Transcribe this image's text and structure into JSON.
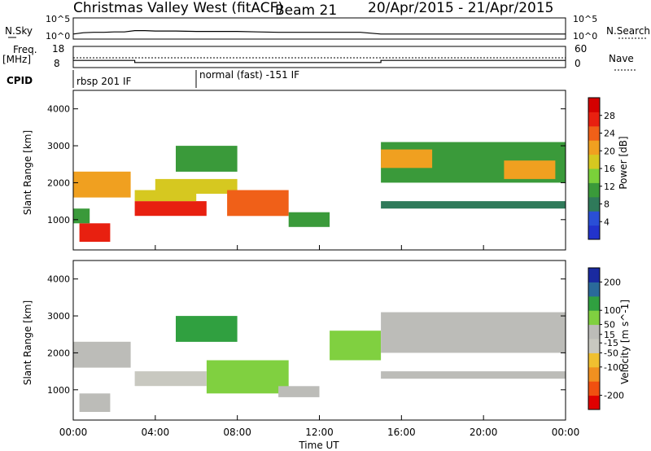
{
  "header": {
    "title": "Christmas Valley West (fitACF)",
    "beam": "Beam 21",
    "date_range": "20/Apr/2015 - 21/Apr/2015"
  },
  "labels": {
    "nsky": "N.Sky",
    "nsearch": "N.Search",
    "freq_line1": "Freq.",
    "freq_line2": "[MHz]",
    "nave": "Nave",
    "cpid": "CPID",
    "noise_tick_top": "10^5",
    "noise_tick_bottom": "10^0",
    "noise_tick_top_right": "10^5",
    "noise_tick_bottom_right": "10^0",
    "freq_tick_top": "18",
    "freq_tick_bottom": "8",
    "nave_tick_top": "60",
    "nave_tick_bottom": "0"
  },
  "cpid": [
    {
      "label": "rbsp 201 IF",
      "start_hour": 0
    },
    {
      "label": "normal (fast) -151 IF",
      "start_hour": 6
    }
  ],
  "colors": {
    "power": [
      "#2233cc",
      "#2a4fd6",
      "#2f7a5a",
      "#3a9a3a",
      "#7ad03a",
      "#d6c820",
      "#f0a020",
      "#f06018",
      "#e82010",
      "#d40000"
    ],
    "velocity": [
      "#e00000",
      "#f05010",
      "#f09020",
      "#f0c030",
      "#c8c8c0",
      "#bcbcb8",
      "#80d040",
      "#30a040",
      "#2a6a9a",
      "#1a2aa0"
    ],
    "ground_scatter": "#bfbfbf"
  },
  "chart_data": [
    {
      "type": "line",
      "name": "noise",
      "x": [
        0,
        0.5,
        1,
        1.5,
        2,
        2.5,
        3,
        3.5,
        4,
        5,
        6,
        7,
        8,
        9,
        10,
        11,
        12,
        13,
        14,
        15,
        16,
        17,
        18,
        19,
        20,
        21,
        22,
        23,
        24
      ],
      "series": [
        {
          "name": "N.Sky",
          "values": [
            1.2,
            1.5,
            1.6,
            1.6,
            1.7,
            1.7,
            2.0,
            2.0,
            1.9,
            1.9,
            1.8,
            1.8,
            1.8,
            1.7,
            1.6,
            1.6,
            1.6,
            1.6,
            1.6,
            1.2,
            1.2,
            1.2,
            1.2,
            1.2,
            1.2,
            1.2,
            1.2,
            1.2,
            1.2
          ]
        }
      ],
      "ylabel": "N.Sky",
      "yscale": "log",
      "ylim": [
        1,
        100000
      ]
    },
    {
      "type": "line",
      "name": "frequency",
      "x": [
        0,
        3,
        3,
        15,
        15,
        24
      ],
      "series": [
        {
          "name": "Freq.",
          "values": [
            11.4,
            11.4,
            10.4,
            10.4,
            11.4,
            11.4
          ]
        }
      ],
      "ylabel": "Freq. [MHz]",
      "ylim": [
        8,
        18
      ]
    },
    {
      "type": "heatmap",
      "title": "Power [dB]",
      "xlabel": "",
      "ylabel": "Slant Range [km]",
      "xlim": [
        0,
        24
      ],
      "ylim": [
        180,
        4500
      ],
      "x_tick_labels": [
        "00:00",
        "04:00",
        "08:00",
        "12:00",
        "16:00",
        "20:00",
        "00:00"
      ],
      "y_ticks": [
        1000,
        2000,
        3000,
        4000
      ],
      "colorbar_label": "Power [dB]",
      "colorbar_ticks": [
        4,
        8,
        12,
        16,
        20,
        24,
        28
      ],
      "colorbar_range": [
        0,
        32
      ],
      "regions": [
        {
          "t0": 0.0,
          "t1": 2.8,
          "r0": 1600,
          "r1": 2300,
          "value": 20
        },
        {
          "t0": 0.3,
          "t1": 1.8,
          "r0": 400,
          "r1": 900,
          "value": 26
        },
        {
          "t0": 0.0,
          "t1": 0.8,
          "r0": 900,
          "r1": 1300,
          "value": 10
        },
        {
          "t0": 3.0,
          "t1": 6.5,
          "r0": 1100,
          "r1": 1500,
          "value": 26
        },
        {
          "t0": 3.0,
          "t1": 6.0,
          "r0": 1500,
          "r1": 1800,
          "value": 16
        },
        {
          "t0": 4.0,
          "t1": 8.0,
          "r0": 1700,
          "r1": 2100,
          "value": 18
        },
        {
          "t0": 7.5,
          "t1": 10.5,
          "r0": 1100,
          "r1": 1800,
          "value": 24
        },
        {
          "t0": 5.0,
          "t1": 8.0,
          "r0": 2300,
          "r1": 3000,
          "value": 10
        },
        {
          "t0": 10.5,
          "t1": 12.5,
          "r0": 800,
          "r1": 1200,
          "value": 10
        },
        {
          "t0": 15.0,
          "t1": 24.0,
          "r0": 2000,
          "r1": 3100,
          "value": 12
        },
        {
          "t0": 15.0,
          "t1": 17.5,
          "r0": 2400,
          "r1": 2900,
          "value": 22
        },
        {
          "t0": 21.0,
          "t1": 23.5,
          "r0": 2100,
          "r1": 2600,
          "value": 22
        },
        {
          "t0": 15.0,
          "t1": 24.0,
          "r0": 1300,
          "r1": 1500,
          "value": 8
        }
      ]
    },
    {
      "type": "heatmap",
      "title": "Velocity [m s^-1]",
      "xlabel": "Time UT",
      "ylabel": "Slant Range [km]",
      "xlim": [
        0,
        24
      ],
      "ylim": [
        180,
        4500
      ],
      "x_tick_labels": [
        "00:00",
        "04:00",
        "08:00",
        "12:00",
        "16:00",
        "20:00",
        "00:00"
      ],
      "y_ticks": [
        1000,
        2000,
        3000,
        4000
      ],
      "colorbar_label": "Velocity [m s^-1]",
      "colorbar_ticks": [
        -200,
        -100,
        -50,
        -15,
        15,
        50,
        100,
        200
      ],
      "colorbar_range": [
        -250,
        250
      ],
      "regions": [
        {
          "t0": 0.0,
          "t1": 2.8,
          "r0": 1600,
          "r1": 2300,
          "value": 0
        },
        {
          "t0": 0.3,
          "t1": 1.8,
          "r0": 400,
          "r1": 900,
          "value": 0
        },
        {
          "t0": 3.0,
          "t1": 6.5,
          "r0": 1100,
          "r1": 1500,
          "value": -40
        },
        {
          "t0": 6.5,
          "t1": 10.5,
          "r0": 900,
          "r1": 1800,
          "value": 60
        },
        {
          "t0": 5.0,
          "t1": 8.0,
          "r0": 2300,
          "r1": 3000,
          "value": 120
        },
        {
          "t0": 10.0,
          "t1": 12.0,
          "r0": 800,
          "r1": 1100,
          "value": 0
        },
        {
          "t0": 12.5,
          "t1": 15.0,
          "r0": 1800,
          "r1": 2600,
          "value": 60
        },
        {
          "t0": 15.0,
          "t1": 24.0,
          "r0": 2000,
          "r1": 3100,
          "value": 0
        },
        {
          "t0": 15.0,
          "t1": 24.0,
          "r0": 1300,
          "r1": 1500,
          "value": 0
        }
      ]
    }
  ]
}
